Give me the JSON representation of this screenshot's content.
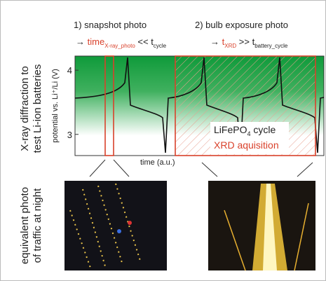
{
  "header": {
    "step1": "1) snapshot photo",
    "formula1": {
      "arrow": "→",
      "t": "time",
      "t_sub": "X-ray_photo",
      "op": "<<",
      "t2": "t",
      "t2_sub": "cycle"
    },
    "step2": "2) bulb exposure photo",
    "formula2": {
      "arrow": "→",
      "t": "t",
      "t_sub": "XRD",
      "op": ">>",
      "t2": "t",
      "t2_sub": "battery_cycle"
    }
  },
  "left_labels": {
    "top": [
      "X-ray diffraction to",
      "test Li-ion batteries"
    ],
    "bottom": [
      "equivalent photo",
      "of traffic at night"
    ]
  },
  "plot": {
    "ylabel": "potential vs. Li⁺/Li (V)",
    "xlabel": "time (a.u.)",
    "ylim": [
      2.67,
      4.22
    ],
    "yticks": [
      3,
      4
    ],
    "legend": {
      "cycle": "LiFePO",
      "cycle_sub": "4",
      "cycle_rest": " cycle",
      "xrd": "XRD aquisition"
    }
  }
}
